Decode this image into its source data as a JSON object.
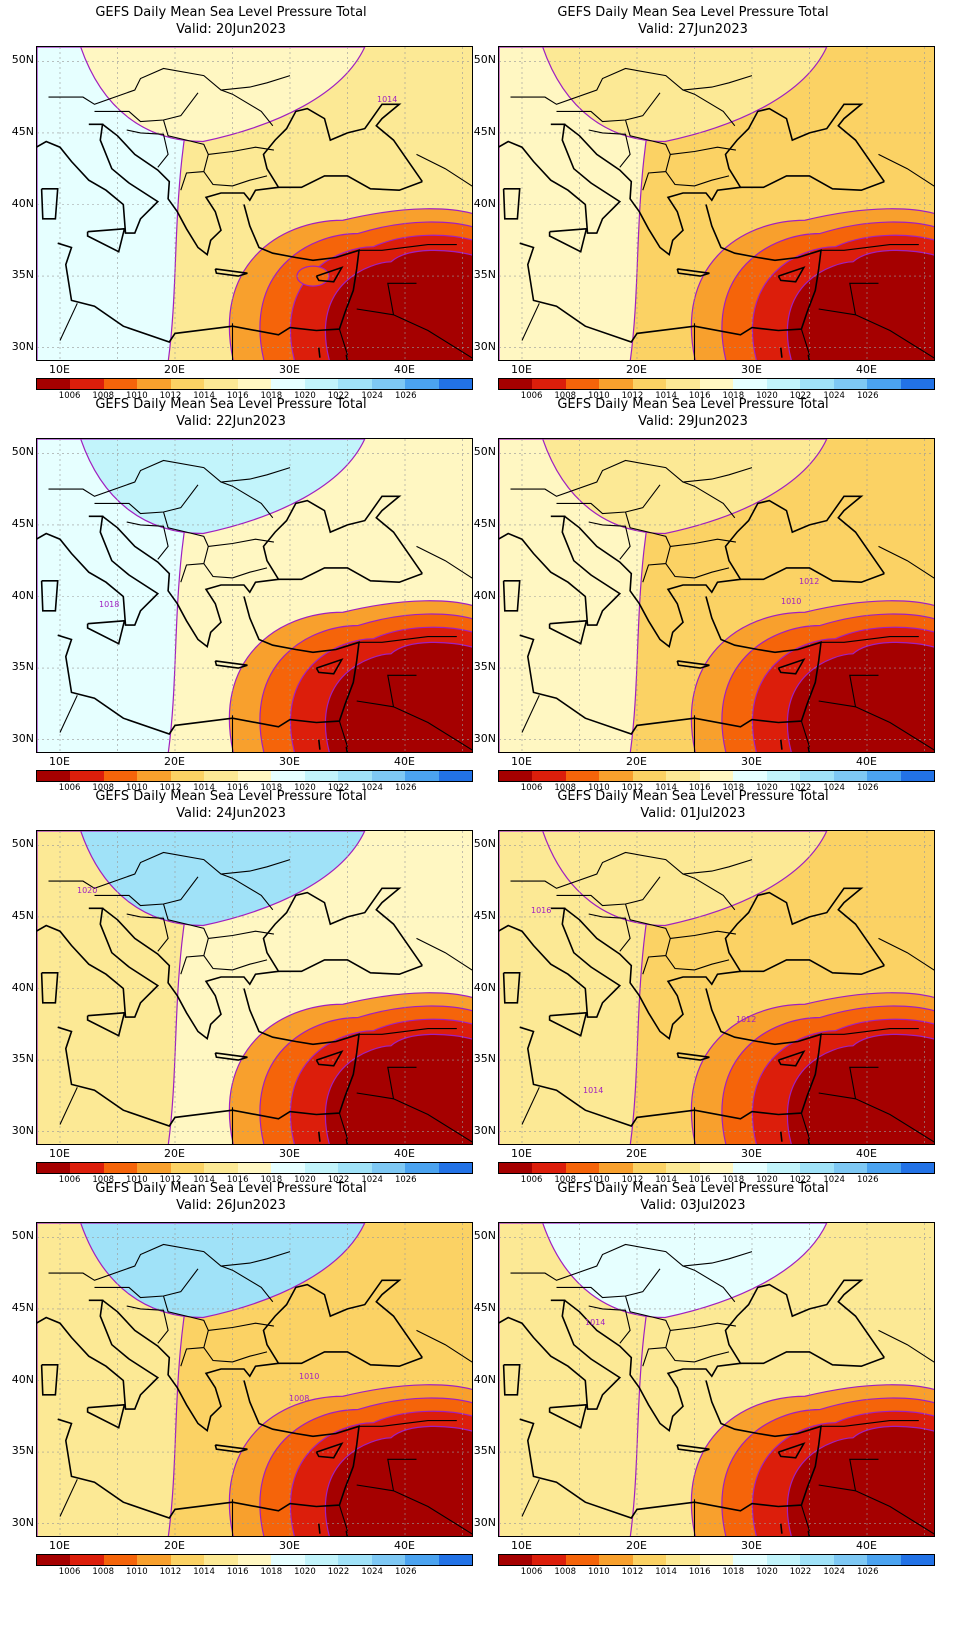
{
  "colorbar": {
    "colors": [
      "#a50000",
      "#dc1e0b",
      "#f5640a",
      "#f8a02d",
      "#fbd264",
      "#fce995",
      "#fff7c2",
      "#e6ffff",
      "#c2f4fb",
      "#a0e2f8",
      "#7ec8f4",
      "#4ba3f0",
      "#2272e6"
    ],
    "ticks": [
      "1006",
      "1008",
      "1010",
      "1012",
      "1014",
      "1016",
      "1018",
      "1020",
      "1022",
      "1024",
      "1026"
    ]
  },
  "axes": {
    "lat_labels": [
      "50N",
      "45N",
      "40N",
      "35N",
      "30N"
    ],
    "lon_labels": [
      "10E",
      "20E",
      "30E",
      "40E"
    ],
    "lat_range": [
      29,
      51
    ],
    "lon_range": [
      8,
      46
    ],
    "grid": "dotted"
  },
  "panels": [
    {
      "title": "GEFS Daily Mean Sea Level Pressure Total",
      "valid": "Valid: 20Jun2023",
      "contour_labels": [
        "1014"
      ]
    },
    {
      "title": "GEFS Daily Mean Sea Level Pressure Total",
      "valid": "Valid: 27Jun2023",
      "contour_labels": []
    },
    {
      "title": "GEFS Daily Mean Sea Level Pressure Total",
      "valid": "Valid: 22Jun2023",
      "contour_labels": [
        "1018"
      ]
    },
    {
      "title": "GEFS Daily Mean Sea Level Pressure Total",
      "valid": "Valid: 29Jun2023",
      "contour_labels": [
        "1012",
        "1010"
      ]
    },
    {
      "title": "GEFS Daily Mean Sea Level Pressure Total",
      "valid": "Valid: 24Jun2023",
      "contour_labels": [
        "1020"
      ]
    },
    {
      "title": "GEFS Daily Mean Sea Level Pressure Total",
      "valid": "Valid: 01Jul2023",
      "contour_labels": [
        "1016",
        "1012",
        "1014"
      ]
    },
    {
      "title": "GEFS Daily Mean Sea Level Pressure Total",
      "valid": "Valid: 26Jun2023",
      "contour_labels": [
        "1010",
        "1008"
      ]
    },
    {
      "title": "GEFS Daily Mean Sea Level Pressure Total",
      "valid": "Valid: 03Jul2023",
      "contour_labels": [
        "1014"
      ]
    }
  ]
}
